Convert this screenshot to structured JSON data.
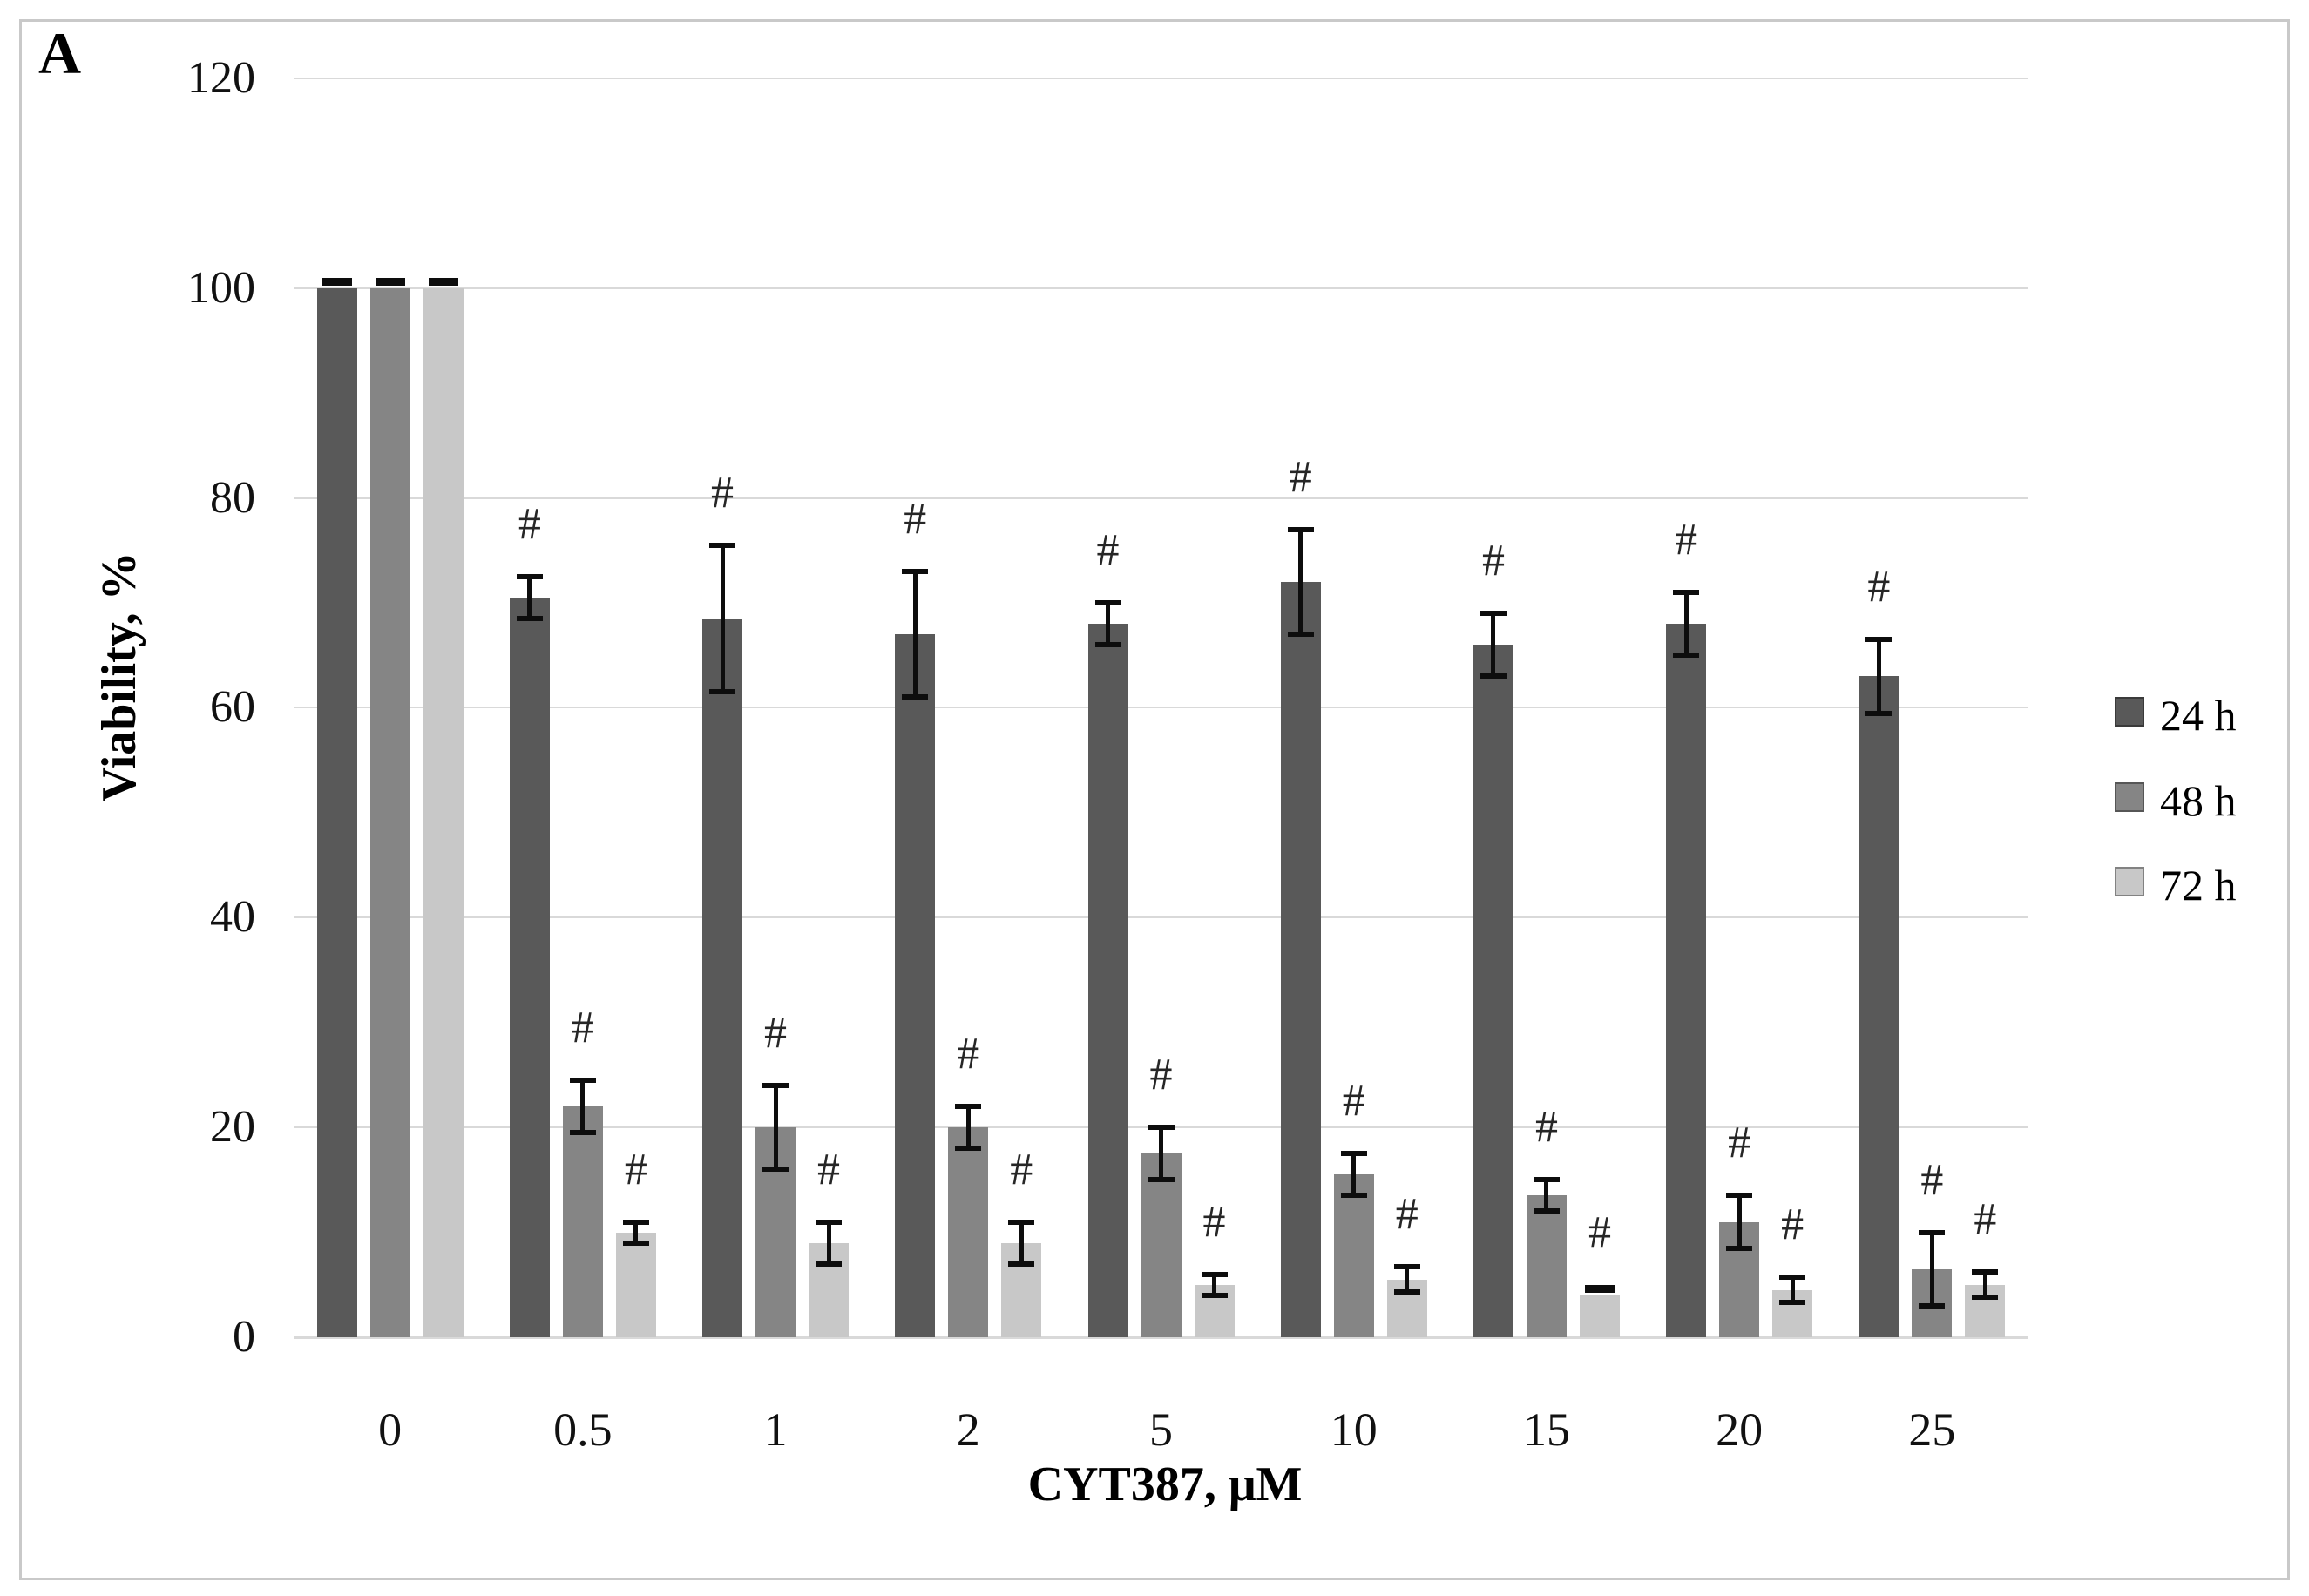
{
  "panel_label": "A",
  "chart_data": {
    "type": "bar",
    "title": "",
    "xlabel": "CYT387, μM",
    "ylabel": "Viability,  %",
    "ylim": [
      0,
      120
    ],
    "y_ticks": [
      0,
      20,
      40,
      60,
      80,
      100,
      120
    ],
    "grid": true,
    "legend_position": "right",
    "significance_symbol": "#",
    "categories": [
      "0",
      "0.5",
      "1",
      "2",
      "5",
      "10",
      "15",
      "20",
      "25"
    ],
    "series": [
      {
        "name": "24 h",
        "color": "#595959",
        "values": [
          100,
          70.5,
          68.5,
          67,
          68,
          72,
          66,
          68,
          63
        ],
        "errors": [
          0.5,
          2,
          7,
          6,
          2,
          5,
          3,
          3,
          3.5
        ],
        "significant": [
          false,
          true,
          true,
          true,
          true,
          true,
          true,
          true,
          true
        ]
      },
      {
        "name": "48 h",
        "color": "#858585",
        "values": [
          100,
          22,
          20,
          20,
          17.5,
          15.5,
          13.5,
          11,
          6.5
        ],
        "errors": [
          0.5,
          2.5,
          4,
          2,
          2.5,
          2,
          1.5,
          2.5,
          3.5
        ],
        "significant": [
          false,
          true,
          true,
          true,
          true,
          true,
          true,
          true,
          true
        ]
      },
      {
        "name": "72 h",
        "color": "#c8c8c8",
        "values": [
          100,
          10,
          9,
          9,
          5,
          5.5,
          4,
          4.5,
          5
        ],
        "errors": [
          0.5,
          1,
          2,
          2,
          1,
          1.2,
          0.5,
          1.2,
          1.2
        ],
        "significant": [
          false,
          true,
          true,
          true,
          true,
          true,
          true,
          true,
          true
        ]
      }
    ]
  }
}
